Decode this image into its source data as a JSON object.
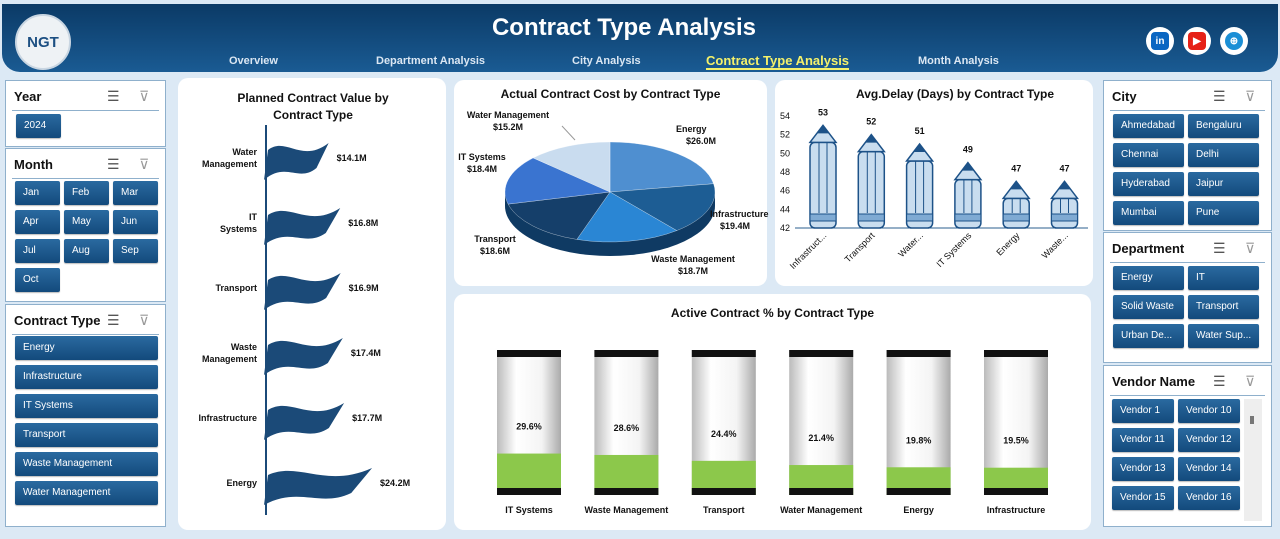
{
  "header": {
    "title": "Contract Type Analysis",
    "logo": "NGT",
    "nav": [
      {
        "label": "Overview"
      },
      {
        "label": "Department Analysis"
      },
      {
        "label": "City Analysis"
      },
      {
        "label": "Contract Type Analysis"
      },
      {
        "label": "Month Analysis"
      }
    ],
    "social": [
      {
        "icon": "linkedin-icon",
        "text": "in",
        "color": "#0a66c2"
      },
      {
        "icon": "youtube-icon",
        "text": "▶",
        "color": "#e62117"
      },
      {
        "icon": "globe-icon",
        "text": "⊕",
        "color": "#1a8fd6"
      }
    ]
  },
  "slicers": {
    "year": {
      "title": "Year",
      "items": [
        "2024"
      ]
    },
    "month": {
      "title": "Month",
      "items": [
        "Jan",
        "Feb",
        "Mar",
        "Apr",
        "May",
        "Jun",
        "Jul",
        "Aug",
        "Sep",
        "Oct"
      ]
    },
    "contract_type": {
      "title": "Contract Type",
      "items": [
        "Energy",
        "Infrastructure",
        "IT Systems",
        "Transport",
        "Waste Management",
        "Water Management"
      ]
    },
    "city": {
      "title": "City",
      "items": [
        "Ahmedabad",
        "Bengaluru",
        "Chennai",
        "Delhi",
        "Hyderabad",
        "Jaipur",
        "Mumbai",
        "Pune"
      ]
    },
    "department": {
      "title": "Department",
      "items": [
        "Energy",
        "IT",
        "Solid Waste",
        "Transport",
        "Urban De...",
        "Water Sup..."
      ]
    },
    "vendor": {
      "title": "Vendor Name",
      "items": [
        "Vendor 1",
        "Vendor 10",
        "Vendor 11",
        "Vendor 12",
        "Vendor 13",
        "Vendor 14",
        "Vendor 15",
        "Vendor 16"
      ]
    }
  },
  "chart_data": [
    {
      "type": "bar",
      "title": "Planned Contract Value by Contract Type",
      "categories": [
        "Water Management",
        "IT Systems",
        "Transport",
        "Waste Management",
        "Infrastructure",
        "Energy"
      ],
      "values": [
        14.1,
        16.8,
        16.9,
        17.4,
        17.7,
        24.2
      ],
      "labels": [
        "$14.1M",
        "$16.8M",
        "$16.9M",
        "$17.4M",
        "$17.7M",
        "$24.2M"
      ],
      "orientation": "horizontal",
      "color": "#1b4a78"
    },
    {
      "type": "pie",
      "title": "Actual Contract Cost by Contract Type",
      "categories": [
        "Energy",
        "Infrastructure",
        "Waste Management",
        "Transport",
        "IT Systems",
        "Water Management"
      ],
      "values": [
        26.0,
        19.4,
        18.7,
        18.6,
        18.4,
        15.2
      ],
      "labels": [
        "$26.0M",
        "$19.4M",
        "$18.7M",
        "$18.6M",
        "$18.4M",
        "$15.2M"
      ],
      "colors": [
        "#4f8fd0",
        "#1d5d94",
        "#2a86d4",
        "#153f6a",
        "#3a74d0",
        "#c9dcef"
      ]
    },
    {
      "type": "bar",
      "title": "Avg.Delay (Days) by Contract Type",
      "categories": [
        "Infrastruct...",
        "Transport",
        "Water...",
        "IT Systems",
        "Energy",
        "Waste..."
      ],
      "values": [
        53,
        52,
        51,
        49,
        47,
        47
      ],
      "ylim": [
        42,
        54
      ],
      "yticks": [
        42,
        44,
        46,
        48,
        50,
        52,
        54
      ],
      "color": "#c9ddef"
    },
    {
      "type": "bar",
      "title": "Active Contract % by Contract Type",
      "categories": [
        "IT Systems",
        "Waste Management",
        "Transport",
        "Water Management",
        "Energy",
        "Infrastructure"
      ],
      "values": [
        29.6,
        28.6,
        24.4,
        21.4,
        19.8,
        19.5
      ],
      "labels": [
        "29.6%",
        "28.6%",
        "24.4%",
        "21.4%",
        "19.8%",
        "19.5%"
      ],
      "color": "#8cc84b"
    }
  ]
}
